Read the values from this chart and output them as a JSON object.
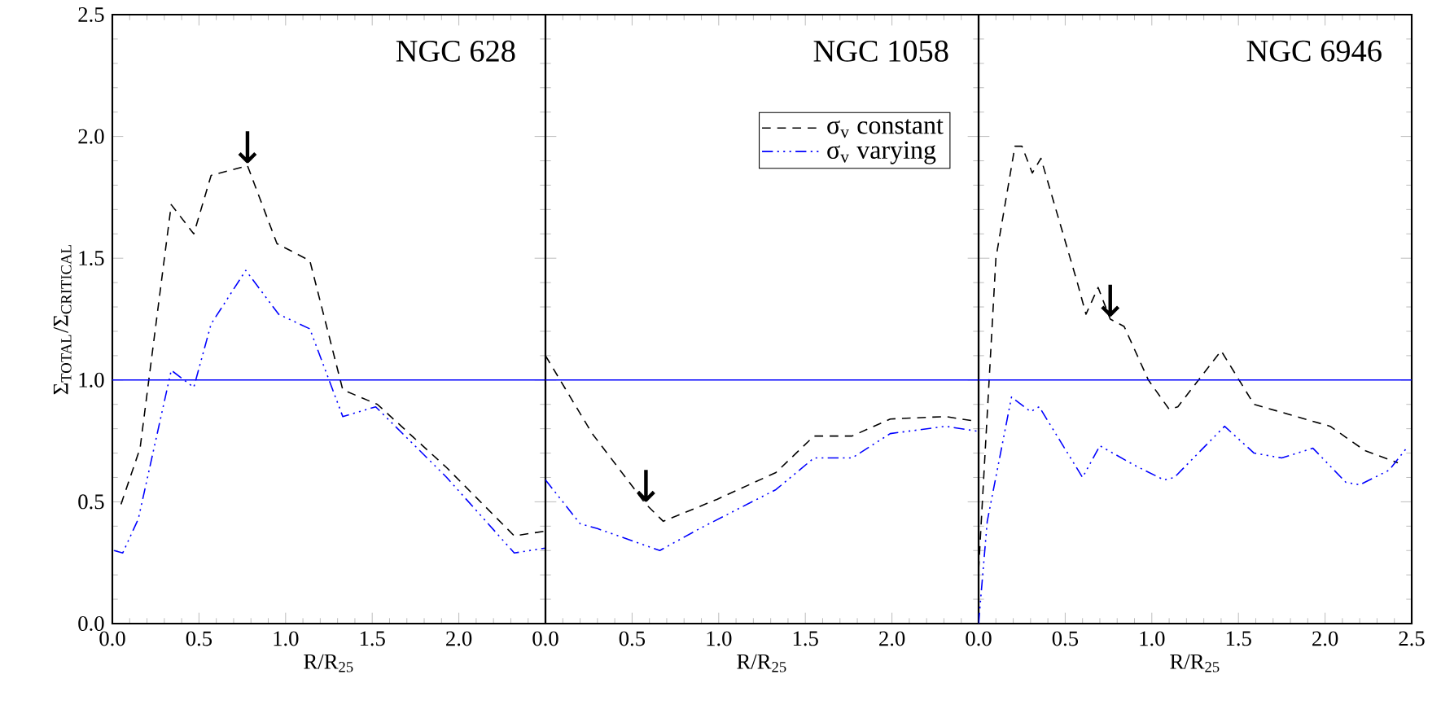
{
  "chart_data": [
    {
      "type": "line",
      "title": "NGC 628",
      "xlabel": "R/R$_{25}$",
      "ylabel": "Σ$_{TOTAL}$/Σ$_{CRITICAL}$",
      "xlim": [
        0,
        2.5
      ],
      "ylim": [
        0,
        2.5
      ],
      "xticks": [
        {
          "value": 0,
          "label": "0.0"
        },
        0.5,
        {
          "value": 1,
          "label": "1.0"
        },
        1.5,
        {
          "value": 2,
          "label": "2.0"
        },
        {
          "value": 2.5,
          "label": null
        }
      ],
      "yticks": [
        {
          "value": 0,
          "label": "0.0"
        },
        0.5,
        {
          "value": 1,
          "label": "1.0"
        },
        1.5,
        {
          "value": 2,
          "label": "2.0"
        },
        2.5
      ],
      "legend": false,
      "ref_lines": [
        {
          "axis": "y",
          "value": 1.0,
          "color": "#0000ff"
        }
      ],
      "annotations": [
        {
          "text": "↓",
          "x": 0.78,
          "y": 1.88
        }
      ],
      "series": [
        {
          "color": "#000000",
          "line_style": "dashed",
          "x": [
            0.05,
            0.16,
            0.34,
            0.47,
            0.57,
            0.78,
            0.95,
            1.14,
            1.33,
            1.53,
            1.93,
            2.32,
            2.5
          ],
          "values": [
            0.49,
            0.72,
            1.72,
            1.6,
            1.84,
            1.88,
            1.56,
            1.49,
            0.96,
            0.9,
            0.64,
            0.36,
            0.38
          ]
        },
        {
          "color": "#0000ff",
          "line_style": "dotted",
          "x": [
            0.01,
            0.06,
            0.15,
            0.34,
            0.47,
            0.57,
            0.77,
            0.96,
            1.14,
            1.33,
            1.52,
            1.93,
            2.32,
            2.5
          ],
          "values": [
            0.3,
            0.29,
            0.43,
            1.04,
            0.97,
            1.23,
            1.45,
            1.27,
            1.21,
            0.85,
            0.89,
            0.6,
            0.29,
            0.31
          ]
        }
      ]
    },
    {
      "type": "line",
      "title": "NGC 1058",
      "xlabel": "R/R$_{25}$",
      "xlim": [
        0,
        2.5
      ],
      "ylim": [
        0,
        2.5
      ],
      "xticks": [
        {
          "value": 0,
          "label": "0.0"
        },
        0.5,
        {
          "value": 1,
          "label": "1.0"
        },
        1.5,
        {
          "value": 2,
          "label": "2.0"
        },
        {
          "value": 2.5,
          "label": null
        }
      ],
      "yticks": [
        0,
        0.5,
        1,
        1.5,
        2,
        2.5
      ],
      "tick_labels": "x",
      "legend": "top right",
      "ref_lines": [
        {
          "axis": "y",
          "value": 1.0,
          "color": "#0000ff"
        }
      ],
      "annotations": [
        {
          "text": "↓",
          "x": 0.58,
          "y": 0.49
        }
      ],
      "series": [
        {
          "name": "σ$_{v}$ constant",
          "color": "#000000",
          "line_style": "dashed",
          "x": [
            0,
            0.27,
            0.58,
            0.68,
            0.99,
            1.33,
            1.55,
            1.77,
            1.99,
            2.31,
            2.49
          ],
          "values": [
            1.1,
            0.78,
            0.49,
            0.42,
            0.51,
            0.62,
            0.77,
            0.77,
            0.84,
            0.85,
            0.83
          ]
        },
        {
          "name": "σ$_{v}$ varying",
          "color": "#0000ff",
          "line_style": "dotted",
          "x": [
            0,
            0.2,
            0.3,
            0.66,
            0.89,
            1.33,
            1.55,
            1.77,
            1.99,
            2.31,
            2.49
          ],
          "values": [
            0.59,
            0.41,
            0.39,
            0.3,
            0.39,
            0.55,
            0.68,
            0.68,
            0.78,
            0.81,
            0.79
          ]
        }
      ]
    },
    {
      "type": "line",
      "title": "NGC 6946",
      "xlabel": "R/R$_{25}$",
      "xlim": [
        0,
        2.5
      ],
      "ylim": [
        0,
        2.5
      ],
      "xticks": [
        {
          "value": 0,
          "label": "0.0"
        },
        0.5,
        {
          "value": 1,
          "label": "1.0"
        },
        1.5,
        {
          "value": 2,
          "label": "2.0"
        },
        2.5
      ],
      "yticks": [
        0,
        0.5,
        1,
        1.5,
        2,
        2.5
      ],
      "tick_labels": "x",
      "legend": false,
      "ref_lines": [
        {
          "axis": "y",
          "value": 1.0,
          "color": "#0000ff"
        }
      ],
      "annotations": [
        {
          "text": "↓",
          "x": 0.76,
          "y": 1.25
        }
      ],
      "series": [
        {
          "color": "#000000",
          "line_style": "dashed",
          "x": [
            0.0,
            0.1,
            0.21,
            0.25,
            0.31,
            0.36,
            0.57,
            0.62,
            0.69,
            0.76,
            0.84,
            0.98,
            1.1,
            1.15,
            1.4,
            1.59,
            2.03,
            2.23,
            2.42
          ],
          "values": [
            0.22,
            1.5,
            1.96,
            1.96,
            1.85,
            1.91,
            1.4,
            1.27,
            1.38,
            1.25,
            1.22,
            1.0,
            0.88,
            0.89,
            1.12,
            0.9,
            0.81,
            0.71,
            0.66
          ]
        },
        {
          "color": "#0000ff",
          "line_style": "dotted",
          "x": [
            0.0,
            0.05,
            0.19,
            0.3,
            0.35,
            0.6,
            0.7,
            0.9,
            1.07,
            1.13,
            1.42,
            1.59,
            1.75,
            1.93,
            2.12,
            2.2,
            2.37,
            2.47
          ],
          "values": [
            0.0,
            0.42,
            0.93,
            0.87,
            0.89,
            0.6,
            0.73,
            0.65,
            0.59,
            0.6,
            0.81,
            0.7,
            0.68,
            0.72,
            0.58,
            0.57,
            0.63,
            0.72
          ]
        }
      ]
    }
  ]
}
